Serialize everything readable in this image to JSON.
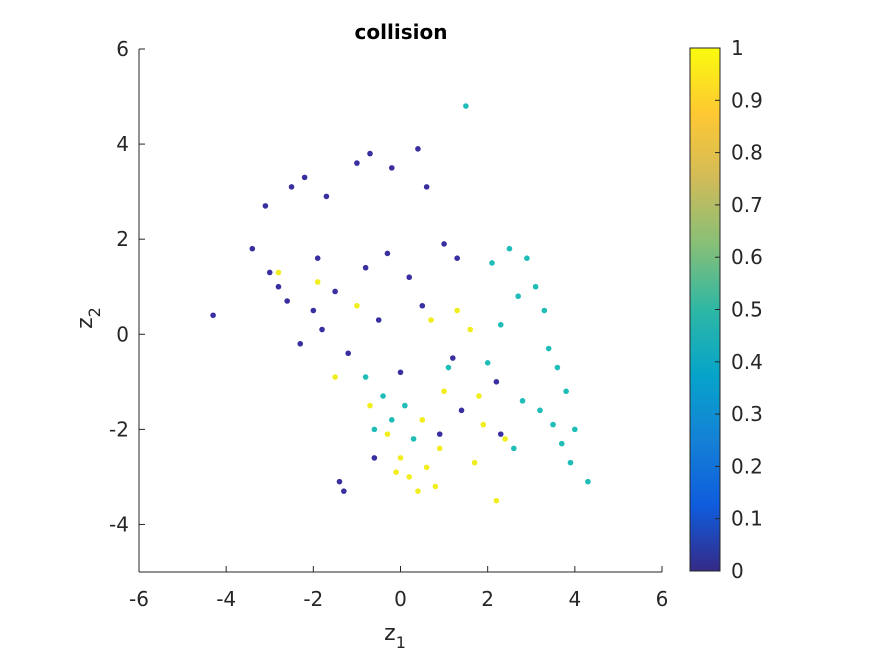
{
  "chart_data": {
    "type": "scatter",
    "title": "collision",
    "xlabel": {
      "base": "z",
      "sub": "1"
    },
    "ylabel": {
      "base": "z",
      "sub": "2"
    },
    "xlim": [
      -6,
      6
    ],
    "ylim": [
      -5,
      6
    ],
    "xticks": [
      -6,
      -4,
      -2,
      0,
      2,
      4,
      6
    ],
    "yticks": [
      -4,
      -2,
      0,
      2,
      4,
      6
    ],
    "grid": false,
    "colormap": "parula",
    "colorbar": {
      "range": [
        0,
        1
      ],
      "ticks": [
        0,
        0.1,
        0.2,
        0.3,
        0.4,
        0.5,
        0.6,
        0.7,
        0.8,
        0.9,
        1
      ],
      "tick_labels": [
        "0",
        "0.1",
        "0.2",
        "0.3",
        "0.4",
        "0.5",
        "0.6",
        "0.7",
        "0.8",
        "0.9",
        "1"
      ],
      "colors": [
        "#352a87",
        "#0f5cdd",
        "#1481d6",
        "#06a4ca",
        "#2eb7a4",
        "#87bf77",
        "#d1bb59",
        "#fec832",
        "#f9fb0e"
      ]
    },
    "point_color_levels": {
      "low": "#3a2fa0",
      "mid": "#1fbcb8",
      "high": "#f2ee1e"
    },
    "points": [
      {
        "x": -4.3,
        "y": 0.4,
        "c": 0
      },
      {
        "x": -3.4,
        "y": 1.8,
        "c": 0
      },
      {
        "x": -3.1,
        "y": 2.7,
        "c": 0
      },
      {
        "x": -2.8,
        "y": 1.0,
        "c": 0
      },
      {
        "x": -2.5,
        "y": 3.1,
        "c": 0
      },
      {
        "x": -2.2,
        "y": 3.3,
        "c": 0
      },
      {
        "x": -1.7,
        "y": 2.9,
        "c": 0
      },
      {
        "x": -1.0,
        "y": 3.6,
        "c": 0
      },
      {
        "x": -0.7,
        "y": 3.8,
        "c": 0
      },
      {
        "x": -0.2,
        "y": 3.5,
        "c": 0
      },
      {
        "x": 0.4,
        "y": 3.9,
        "c": 0
      },
      {
        "x": 0.6,
        "y": 3.1,
        "c": 0
      },
      {
        "x": -2.0,
        "y": 0.5,
        "c": 0
      },
      {
        "x": -1.8,
        "y": 0.1,
        "c": 0
      },
      {
        "x": -1.5,
        "y": 0.9,
        "c": 0
      },
      {
        "x": -1.2,
        "y": -0.4,
        "c": 0
      },
      {
        "x": -2.3,
        "y": -0.2,
        "c": 0
      },
      {
        "x": -0.8,
        "y": 1.4,
        "c": 0
      },
      {
        "x": -0.3,
        "y": 1.7,
        "c": 0
      },
      {
        "x": 0.2,
        "y": 1.2,
        "c": 0
      },
      {
        "x": 0.5,
        "y": 0.6,
        "c": 0
      },
      {
        "x": 1.0,
        "y": 1.9,
        "c": 0
      },
      {
        "x": 1.3,
        "y": 1.6,
        "c": 0
      },
      {
        "x": -1.3,
        "y": -3.3,
        "c": 0
      },
      {
        "x": -1.4,
        "y": -3.1,
        "c": 0
      },
      {
        "x": -0.6,
        "y": -2.6,
        "c": 0
      },
      {
        "x": 0.9,
        "y": -2.1,
        "c": 0
      },
      {
        "x": 1.4,
        "y": -1.6,
        "c": 0
      },
      {
        "x": 2.2,
        "y": -1.0,
        "c": 0
      },
      {
        "x": 2.3,
        "y": -2.1,
        "c": 0
      },
      {
        "x": 1.2,
        "y": -0.5,
        "c": 0
      },
      {
        "x": 0.0,
        "y": -0.8,
        "c": 0
      },
      {
        "x": -0.5,
        "y": 0.3,
        "c": 0
      },
      {
        "x": -2.6,
        "y": 0.7,
        "c": 0
      },
      {
        "x": -3.0,
        "y": 1.3,
        "c": 0
      },
      {
        "x": -1.9,
        "y": 1.6,
        "c": 0
      },
      {
        "x": 1.5,
        "y": 4.8,
        "c": 0.5
      },
      {
        "x": 2.1,
        "y": 1.5,
        "c": 0.5
      },
      {
        "x": 2.5,
        "y": 1.8,
        "c": 0.5
      },
      {
        "x": 2.9,
        "y": 1.6,
        "c": 0.5
      },
      {
        "x": 3.1,
        "y": 1.0,
        "c": 0.5
      },
      {
        "x": 3.3,
        "y": 0.5,
        "c": 0.5
      },
      {
        "x": 2.7,
        "y": 0.8,
        "c": 0.5
      },
      {
        "x": 2.3,
        "y": 0.2,
        "c": 0.5
      },
      {
        "x": 3.4,
        "y": -0.3,
        "c": 0.5
      },
      {
        "x": 3.6,
        "y": -0.7,
        "c": 0.5
      },
      {
        "x": 3.8,
        "y": -1.2,
        "c": 0.5
      },
      {
        "x": 3.2,
        "y": -1.6,
        "c": 0.5
      },
      {
        "x": 2.8,
        "y": -1.4,
        "c": 0.5
      },
      {
        "x": 3.5,
        "y": -1.9,
        "c": 0.5
      },
      {
        "x": 4.0,
        "y": -2.0,
        "c": 0.5
      },
      {
        "x": 3.7,
        "y": -2.3,
        "c": 0.5
      },
      {
        "x": 3.9,
        "y": -2.7,
        "c": 0.5
      },
      {
        "x": 4.3,
        "y": -3.1,
        "c": 0.5
      },
      {
        "x": 2.6,
        "y": -2.4,
        "c": 0.5
      },
      {
        "x": 2.0,
        "y": -0.6,
        "c": 0.5
      },
      {
        "x": -0.4,
        "y": -1.3,
        "c": 0.5
      },
      {
        "x": -0.2,
        "y": -1.8,
        "c": 0.5
      },
      {
        "x": 0.1,
        "y": -1.5,
        "c": 0.5
      },
      {
        "x": -0.6,
        "y": -2.0,
        "c": 0.5
      },
      {
        "x": 0.3,
        "y": -2.2,
        "c": 0.5
      },
      {
        "x": -0.8,
        "y": -0.9,
        "c": 0.5
      },
      {
        "x": 1.1,
        "y": -0.7,
        "c": 0.5
      },
      {
        "x": 0.0,
        "y": -2.6,
        "c": 1
      },
      {
        "x": 0.2,
        "y": -3.0,
        "c": 1
      },
      {
        "x": 0.4,
        "y": -3.3,
        "c": 1
      },
      {
        "x": 0.6,
        "y": -2.8,
        "c": 1
      },
      {
        "x": 0.9,
        "y": -2.4,
        "c": 1
      },
      {
        "x": 1.7,
        "y": -2.7,
        "c": 1
      },
      {
        "x": 2.2,
        "y": -3.5,
        "c": 1
      },
      {
        "x": -0.3,
        "y": -2.1,
        "c": 1
      },
      {
        "x": -0.7,
        "y": -1.5,
        "c": 1
      },
      {
        "x": 1.3,
        "y": 0.5,
        "c": 1
      },
      {
        "x": 1.6,
        "y": 0.1,
        "c": 1
      },
      {
        "x": 1.0,
        "y": -1.2,
        "c": 1
      },
      {
        "x": 1.9,
        "y": -1.9,
        "c": 1
      },
      {
        "x": 2.4,
        "y": -2.2,
        "c": 1
      },
      {
        "x": 0.7,
        "y": 0.3,
        "c": 1
      },
      {
        "x": -1.0,
        "y": 0.6,
        "c": 1
      },
      {
        "x": -1.5,
        "y": -0.9,
        "c": 1
      },
      {
        "x": -2.8,
        "y": 1.3,
        "c": 1
      },
      {
        "x": -1.9,
        "y": 1.1,
        "c": 1
      },
      {
        "x": 1.8,
        "y": -1.3,
        "c": 1
      },
      {
        "x": 0.5,
        "y": -1.8,
        "c": 1
      },
      {
        "x": -0.1,
        "y": -2.9,
        "c": 1
      },
      {
        "x": 0.8,
        "y": -3.2,
        "c": 1
      }
    ]
  }
}
